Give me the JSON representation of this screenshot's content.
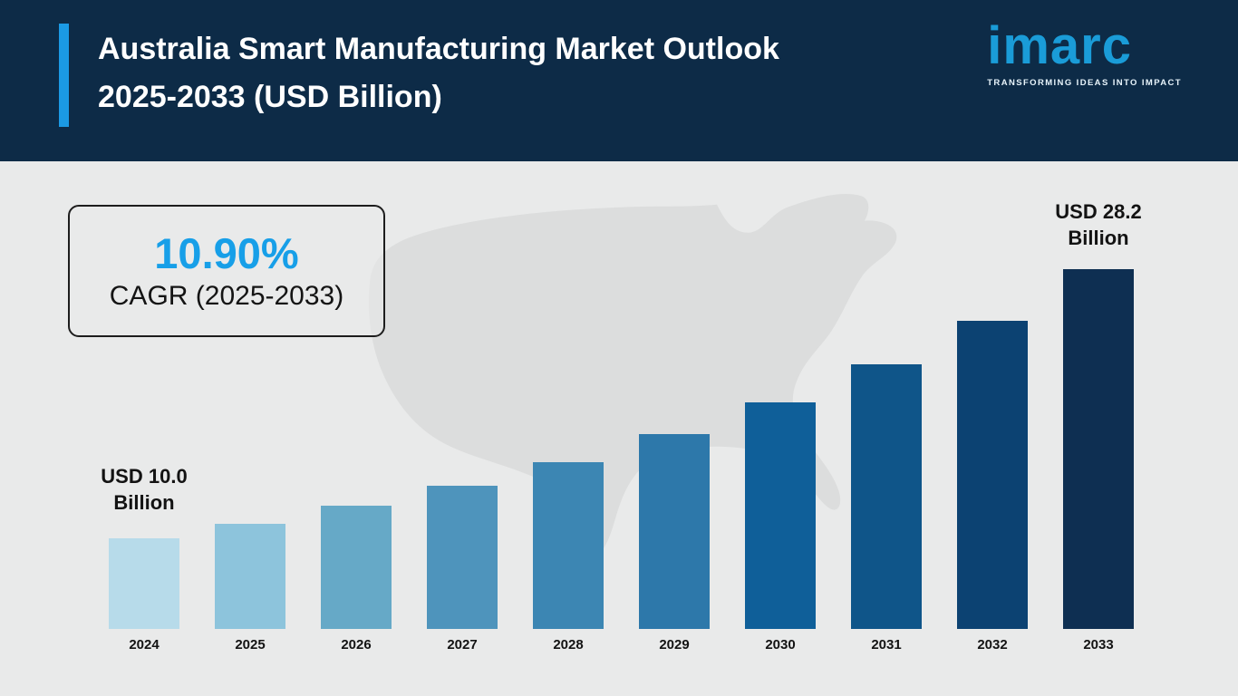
{
  "header": {
    "title_line1": "Australia Smart Manufacturing Market Outlook",
    "title_line2": "2025-2033 (USD Billion)",
    "logo_text": "imarc",
    "logo_tagline": "TRANSFORMING IDEAS INTO IMPACT"
  },
  "cagr_box": {
    "value": "10.90%",
    "label": "CAGR (2025-2033)"
  },
  "annotations": {
    "first": {
      "line1": "USD 10.0",
      "line2": "Billion"
    },
    "last": {
      "line1": "USD 28.2",
      "line2": "Billion"
    }
  },
  "chart_data": {
    "type": "bar",
    "title": "Australia Smart Manufacturing Market Outlook 2025-2033 (USD Billion)",
    "unit": "USD Billion",
    "categories": [
      "2024",
      "2025",
      "2026",
      "2027",
      "2028",
      "2029",
      "2030",
      "2031",
      "2032",
      "2033"
    ],
    "values": [
      10.0,
      11.2,
      12.6,
      14.1,
      15.8,
      17.8,
      19.9,
      22.4,
      25.1,
      28.2
    ],
    "first_bar_label": "USD 10.0 Billion",
    "last_bar_label": "USD 28.2 Billion",
    "cagr": "10.90%",
    "cagr_period": "2025-2033",
    "bar_colors": [
      "#b7dbea",
      "#8dc4dc",
      "#66a9c7",
      "#4e94bc",
      "#3c86b3",
      "#2d78aa",
      "#0f5f99",
      "#0f5589",
      "#0c4272",
      "#0e2f52"
    ],
    "xlabel": "",
    "ylabel": "",
    "grid": false,
    "legend": false
  },
  "colors": {
    "header_background": "#0d2b47",
    "accent_blue": "#1b9ae4",
    "logo_blue": "#1a9cd8",
    "cagr_blue": "#179fe8",
    "body_background": "#e9eaea",
    "map_gray": "#dcdddd",
    "text_dark": "#131313"
  }
}
